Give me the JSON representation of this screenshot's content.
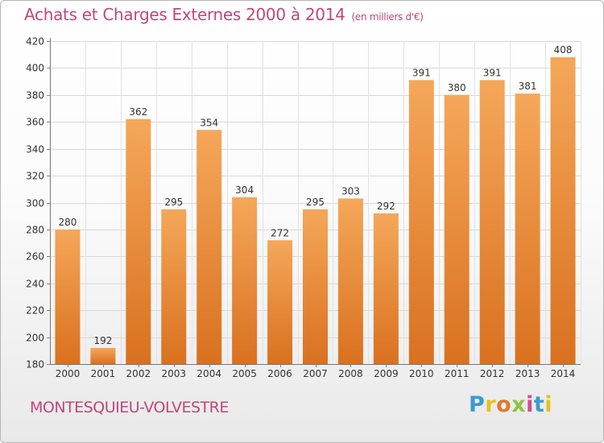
{
  "title": {
    "main": "Achats et Charges Externes 2000 à 2014",
    "unit": "(en milliers d'€)"
  },
  "commune": "MONTESQUIEU-VOLVESTRE",
  "logo": {
    "letters": [
      "P",
      "r",
      "o",
      "x",
      "i",
      "t",
      "i"
    ],
    "colors": [
      "#3d9ad1",
      "#e8c022",
      "#e07a2a",
      "#8cc63f",
      "#d64a8c",
      "#3d9ad1",
      "#e8c022"
    ]
  },
  "colors": {
    "accent": "#c1477a",
    "bar_top": "#f5a75a",
    "bar_bottom": "#d9711f"
  },
  "chart_data": {
    "type": "bar",
    "title": "Achats et Charges Externes 2000 à 2014",
    "ylabel": "(en milliers d'€)",
    "categories": [
      "2000",
      "2001",
      "2002",
      "2003",
      "2004",
      "2005",
      "2006",
      "2007",
      "2008",
      "2009",
      "2010",
      "2011",
      "2012",
      "2013",
      "2014"
    ],
    "values": [
      280,
      192,
      362,
      295,
      354,
      304,
      272,
      295,
      303,
      292,
      391,
      380,
      391,
      381,
      408
    ],
    "ylim": [
      180,
      420
    ],
    "yticks": [
      180,
      200,
      220,
      240,
      260,
      280,
      300,
      320,
      340,
      360,
      380,
      400,
      420
    ],
    "grid": true,
    "legend": "none"
  }
}
